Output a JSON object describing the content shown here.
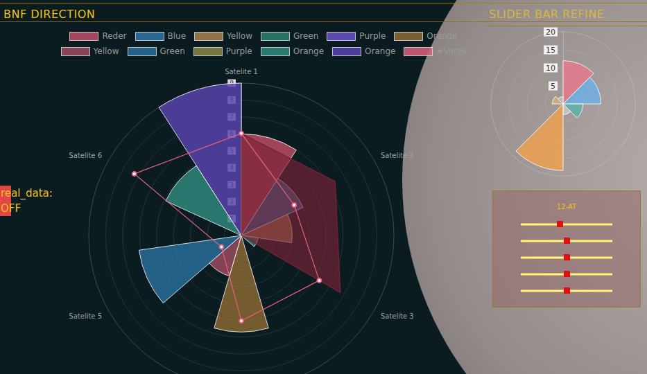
{
  "header": {
    "title": "BNF DIRECTION",
    "panel_title": "SLIDER BAR REFINE"
  },
  "status": {
    "label": "real_data:",
    "value": "OFF"
  },
  "chart_data": [
    {
      "type": "polar_bar",
      "legend": "top",
      "grid": true,
      "tick_labels": "y",
      "ylim": [
        0,
        9
      ],
      "yticks": [
        1,
        2,
        3,
        4,
        5,
        6,
        7,
        8,
        9
      ],
      "series": [
        {
          "name": "Reder",
          "type": "bar",
          "color": "#c24d68",
          "values": [
            6,
            null,
            null,
            null,
            null,
            null,
            null,
            null,
            null,
            null,
            null
          ]
        },
        {
          "name": "Blue",
          "type": "bar",
          "color": "#2f73a8",
          "values": [
            null,
            4,
            null,
            null,
            null,
            null,
            null,
            null,
            null,
            null,
            null
          ]
        },
        {
          "name": "Yellow",
          "type": "bar",
          "color": "#a8844e",
          "values": [
            null,
            null,
            3,
            null,
            null,
            null,
            null,
            null,
            null,
            null,
            null
          ]
        },
        {
          "name": "Green",
          "type": "bar",
          "color": "#2b8073",
          "values": [
            null,
            null,
            null,
            1,
            null,
            null,
            null,
            null,
            null,
            null,
            null
          ]
        },
        {
          "name": "Purple",
          "type": "bar",
          "color": "#6b52c8",
          "values": [
            null,
            null,
            null,
            null,
            0,
            null,
            null,
            null,
            null,
            null,
            null
          ]
        },
        {
          "name": "Orange",
          "type": "bar",
          "color": "#8c6a35",
          "values": [
            null,
            null,
            null,
            null,
            null,
            5.7,
            null,
            null,
            null,
            null,
            null
          ]
        },
        {
          "name": "Yellow",
          "type": "bar",
          "color": "#a04a60",
          "values": [
            null,
            null,
            null,
            null,
            null,
            null,
            2.5,
            null,
            null,
            null,
            null
          ]
        },
        {
          "name": "Green",
          "type": "bar",
          "color": "#2a6f9e",
          "values": [
            null,
            null,
            null,
            null,
            null,
            null,
            null,
            6.1,
            null,
            null,
            null
          ]
        },
        {
          "name": "Purple",
          "type": "bar",
          "color": "#8a8745",
          "values": [
            null,
            null,
            null,
            null,
            null,
            null,
            null,
            null,
            0,
            null,
            null
          ]
        },
        {
          "name": "Orange",
          "type": "bar",
          "color": "#2f8a80",
          "values": [
            null,
            null,
            null,
            null,
            null,
            null,
            null,
            null,
            null,
            4.9,
            null
          ]
        },
        {
          "name": "Orange",
          "type": "bar",
          "color": "#5a43b0",
          "values": [
            null,
            null,
            null,
            null,
            null,
            null,
            null,
            null,
            null,
            null,
            9
          ]
        },
        {
          "name": "#Votes",
          "type": "radar",
          "color": "#d9607c",
          "indicators": [
            "Satelite 1",
            "Satelite 6",
            "Satelite 5",
            null,
            "Satelite 3",
            "Satelite 2"
          ],
          "ylim": [
            0,
            10
          ],
          "lines": [
            {
              "type": "area",
              "color": "#7a2438",
              "marker": "none",
              "values": [
                6.7,
                0,
                0,
                0,
                7.5,
                7.1
              ]
            },
            {
              "type": "line",
              "color": "#e8607f",
              "marker": "circle",
              "values": [
                6.7,
                8.1,
                1.5,
                5.6,
                5.9,
                4
              ]
            }
          ]
        }
      ]
    },
    {
      "type": "polar_bar",
      "grid": true,
      "tick_labels": "y",
      "ylim": [
        0,
        20
      ],
      "yticks": [
        5,
        10,
        15,
        20
      ],
      "values": [
        12,
        10.5,
        5.5,
        3,
        18.5,
        0,
        3,
        2
      ],
      "colors": [
        "#e8798e",
        "#6ab0e6",
        "#5ab3a8",
        "#c9c9c9",
        "#f0a04e",
        "#bbbbbb",
        "#d8b070",
        "#bbbbbb"
      ]
    }
  ],
  "sliders": {
    "title": "12-AT",
    "range": [
      0,
      100
    ],
    "values": [
      43,
      50,
      50,
      50,
      50
    ]
  }
}
